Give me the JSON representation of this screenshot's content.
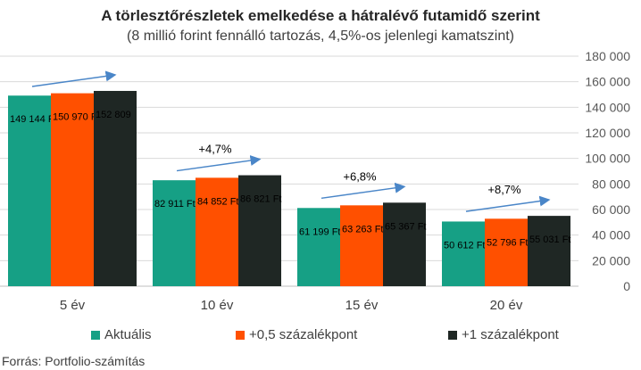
{
  "chart_data": {
    "type": "bar",
    "title": "A törlesztőrészletek emelkedése a hátralévő futamidő szerint",
    "subtitle": "(8 millió forint fennálló tartozás, 4,5%-os jelenlegi kamatszint)",
    "categories": [
      "5 év",
      "10 év",
      "15 év",
      "20 év"
    ],
    "series": [
      {
        "name": "Aktuális",
        "color": "#16a085",
        "values": [
          149144,
          82911,
          61199,
          50612
        ],
        "labels": [
          "149 144 Ft",
          "82 911 Ft",
          "61 199 Ft",
          "50 612 Ft"
        ]
      },
      {
        "name": "+0,5 százalékpont",
        "color": "#ff5000",
        "values": [
          150970,
          84852,
          63263,
          52796
        ],
        "labels": [
          "150 970 Ft",
          "84 852 Ft",
          "63 263 Ft",
          "52 796 Ft"
        ]
      },
      {
        "name": "+1 százalékpont",
        "color": "#1f2724",
        "values": [
          152809,
          86821,
          65367,
          55031
        ],
        "labels": [
          "152 809",
          "86 821 Ft",
          "65 367 Ft",
          "55 031 Ft"
        ]
      }
    ],
    "annotations": [
      "",
      "+4,7%",
      "+6,8%",
      "+8,7%"
    ],
    "ylim": [
      0,
      180000
    ],
    "yticks": [
      0,
      20000,
      40000,
      60000,
      80000,
      100000,
      120000,
      140000,
      160000,
      180000
    ],
    "ytick_labels": [
      "0",
      "20 000",
      "40 000",
      "60 000",
      "80 000",
      "100 000",
      "120 000",
      "140 000",
      "160 000",
      "180 000"
    ],
    "y_axis_side": "right",
    "grid": true,
    "legend_position": "bottom",
    "arrow_color": "#4a86c8"
  },
  "source": "Forrás: Portfolio-számítás"
}
